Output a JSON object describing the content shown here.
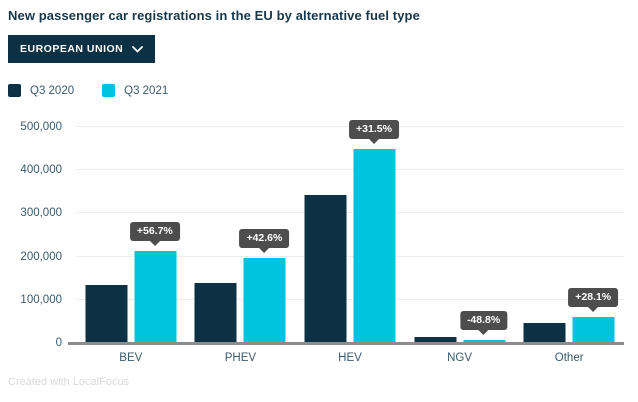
{
  "title": "New passenger car registrations in the EU by alternative fuel type",
  "dropdown": {
    "label": "EUROPEAN UNION"
  },
  "footer": "Created with LocalFocus",
  "colors": {
    "navy": "#0c3044",
    "cyan": "#00c3dd",
    "annotation_bg": "#4d4d4d",
    "grid": "#ececec",
    "axis_line": "#8c8c8c",
    "axis_text": "#3a5a6d",
    "title_text": "#16384c"
  },
  "chart_data": {
    "type": "bar",
    "title": "New passenger car registrations in the EU by alternative fuel type",
    "categories": [
      "BEV",
      "PHEV",
      "HEV",
      "NGV",
      "Other"
    ],
    "series": [
      {
        "name": "Q3 2020",
        "color": "#0c3044",
        "values": [
          135000,
          138000,
          342000,
          14000,
          47500
        ]
      },
      {
        "name": "Q3 2021",
        "color": "#00c3dd",
        "values": [
          212000,
          197000,
          450000,
          7170,
          60800
        ]
      }
    ],
    "annotations": [
      "+56.7%",
      "+42.6%",
      "+31.5%",
      "-48.8%",
      "+28.1%"
    ],
    "xlabel": "",
    "ylabel": "",
    "ylim": [
      0,
      500000
    ],
    "yticks": [
      0,
      100000,
      200000,
      300000,
      400000,
      500000
    ],
    "ytick_labels": [
      "0",
      "100,000",
      "200,000",
      "300,000",
      "400,000",
      "500,000"
    ],
    "grid": true,
    "legend_position": "top-left"
  }
}
